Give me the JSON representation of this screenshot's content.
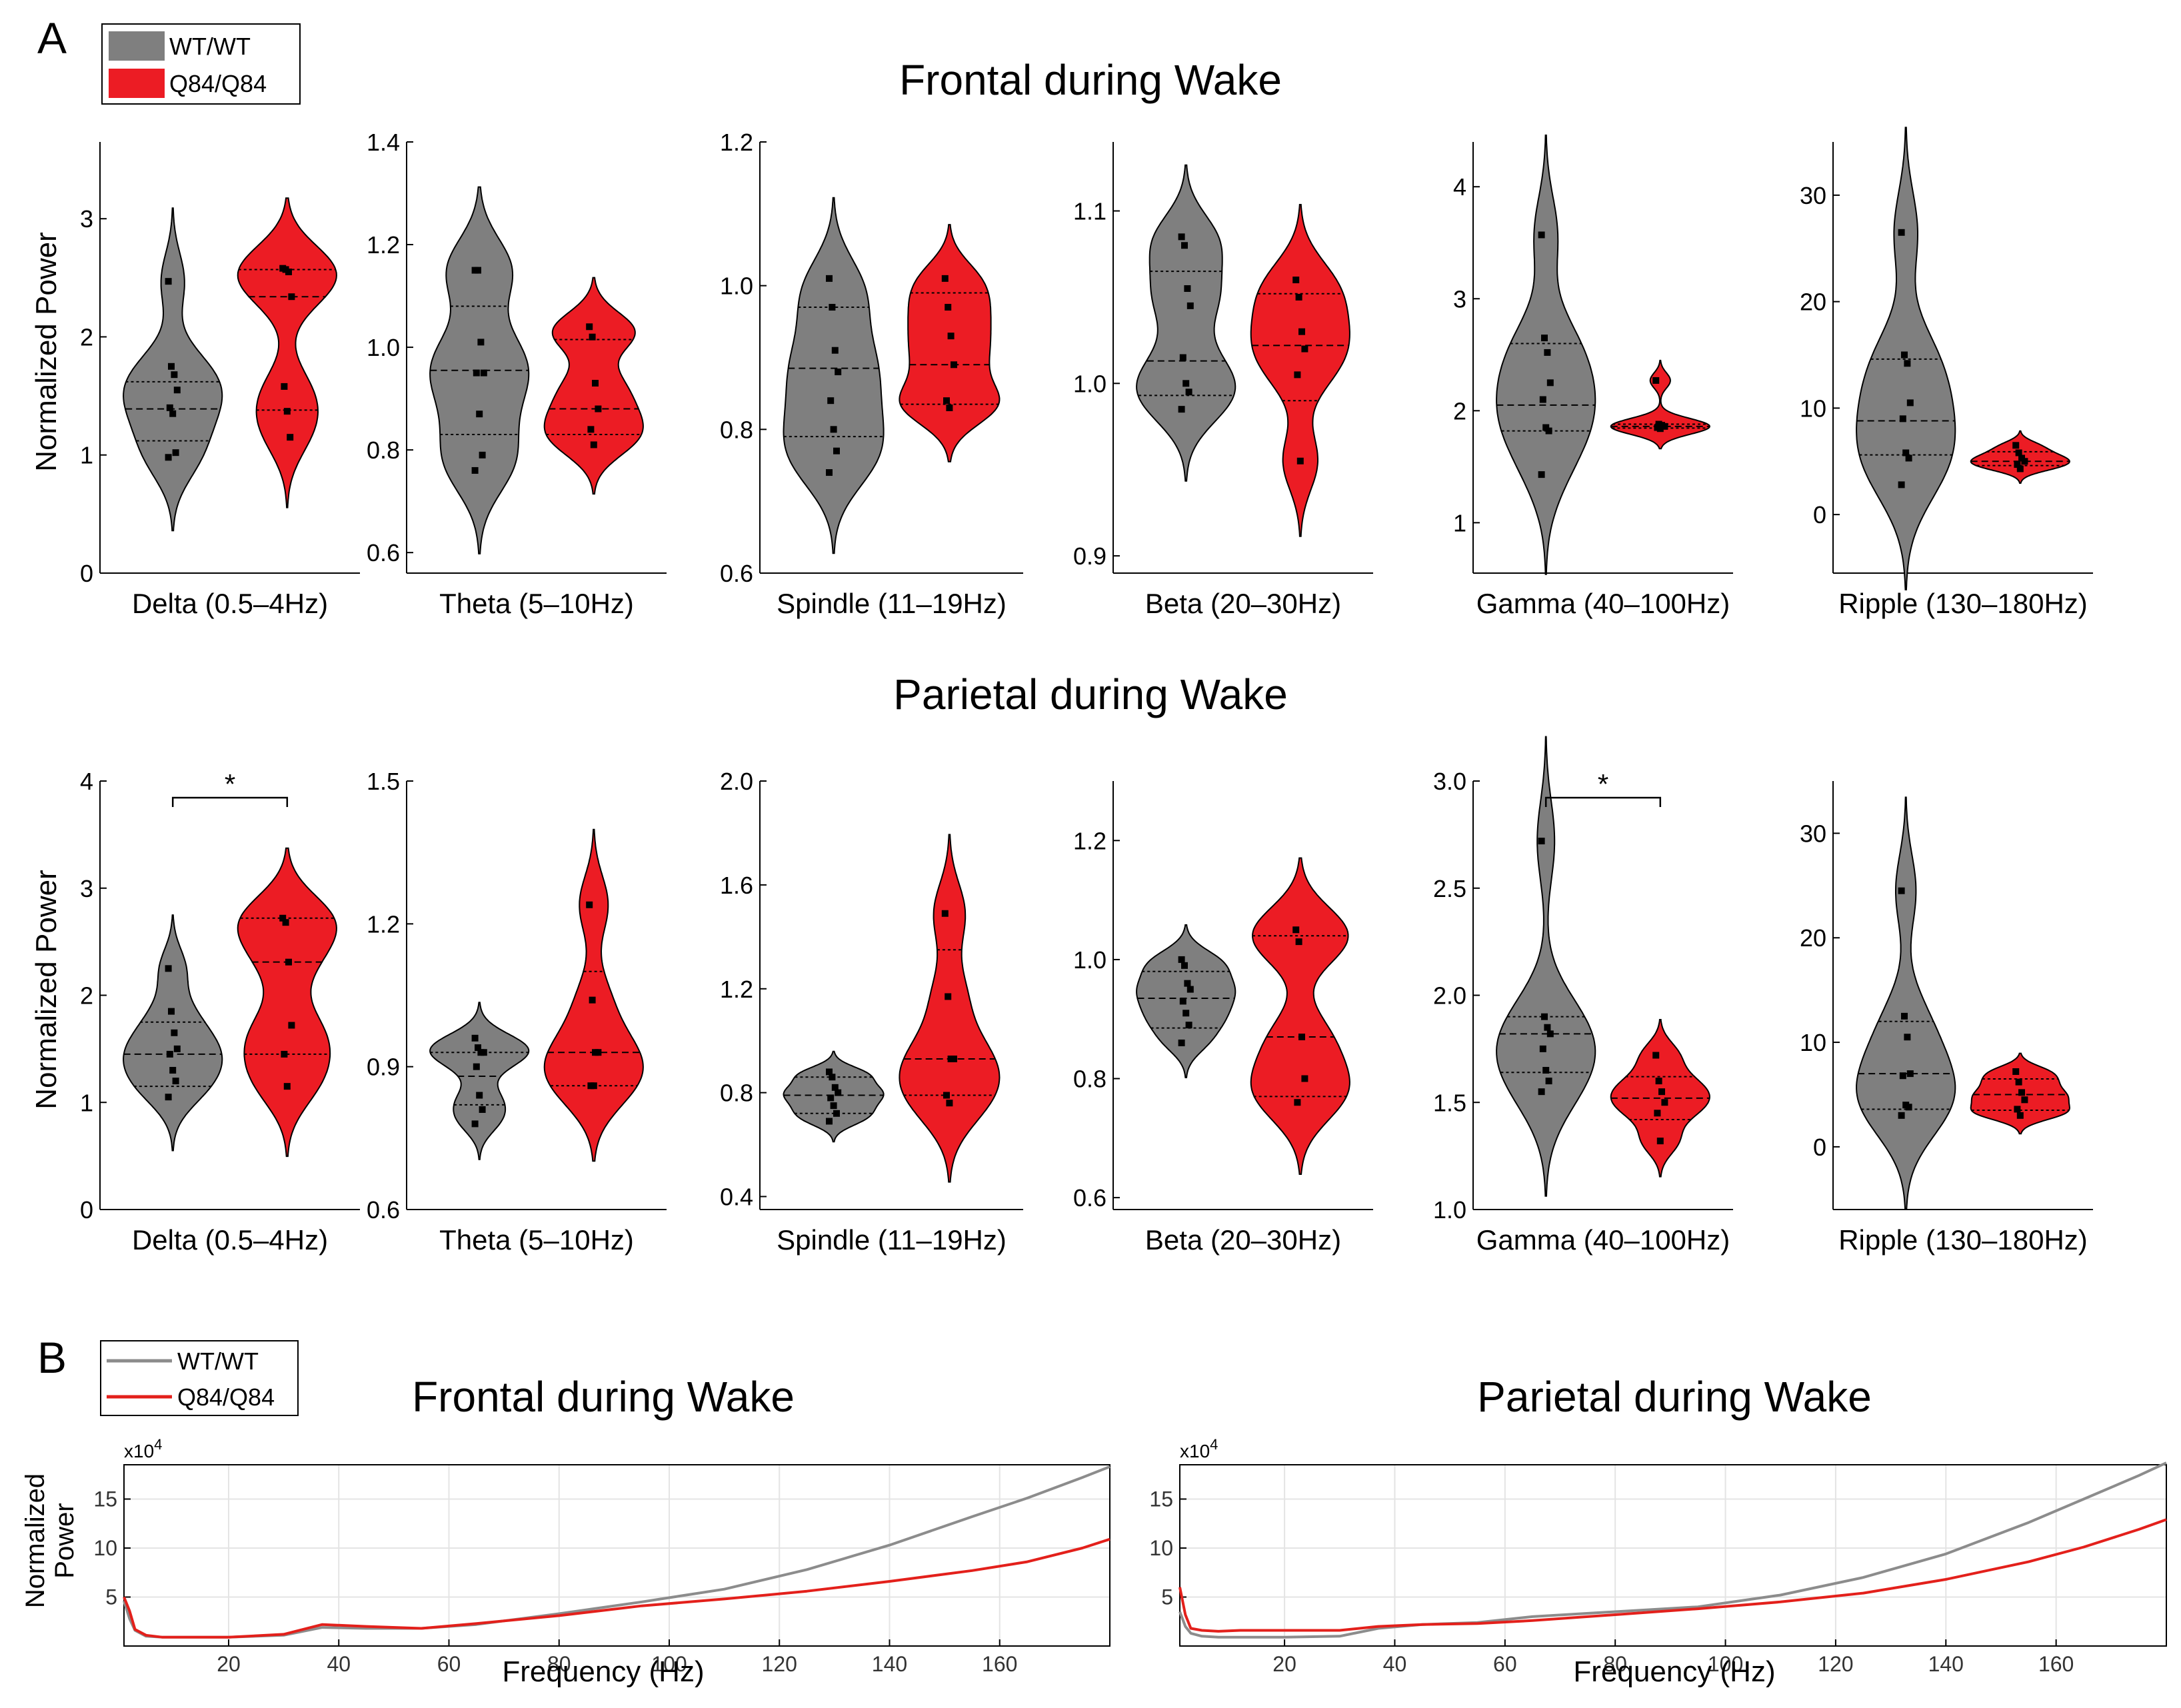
{
  "panel_a": {
    "label": "A",
    "legend": [
      {
        "label": "WT/WT",
        "color": "#7f7f7f"
      },
      {
        "label": "Q84/Q84",
        "color": "#ec1c24"
      }
    ],
    "rows": [
      {
        "title": "Frontal during Wake",
        "ylabel": "Normalized Power",
        "plots": [
          {
            "xlabel": "Delta (0.5–4Hz)",
            "ylim": [
              0,
              3.65
            ],
            "yticks": [
              "0",
              "1",
              "2",
              "3"
            ],
            "wt": {
              "points": [
                2.47,
                1.75,
                1.68,
                1.55,
                1.4,
                1.35,
                1.02,
                0.98
              ],
              "median": 1.39,
              "q1": 1.12,
              "q3": 1.62
            },
            "q84": {
              "points": [
                2.58,
                2.57,
                2.55,
                2.34,
                1.58,
                1.37,
                1.15
              ],
              "median": 2.34,
              "q1": 1.38,
              "q3": 2.57
            },
            "sig": null
          },
          {
            "xlabel": "Theta (5–10Hz)",
            "ylim": [
              0.56,
              1.4
            ],
            "yticks": [
              "0.6",
              "0.8",
              "1.0",
              "1.2",
              "1.4"
            ],
            "wt": {
              "points": [
                1.15,
                1.15,
                1.01,
                0.95,
                0.95,
                0.87,
                0.79,
                0.76
              ],
              "median": 0.955,
              "q1": 0.83,
              "q3": 1.08
            },
            "q84": {
              "points": [
                1.04,
                1.02,
                0.93,
                0.88,
                0.84,
                0.81
              ],
              "median": 0.88,
              "q1": 0.83,
              "q3": 1.015
            },
            "sig": null
          },
          {
            "xlabel": "Spindle (11–19Hz)",
            "ylim": [
              0.6,
              1.2
            ],
            "yticks": [
              "0.6",
              "0.8",
              "1.0",
              "1.2"
            ],
            "wt": {
              "points": [
                1.01,
                0.97,
                0.91,
                0.88,
                0.84,
                0.8,
                0.77,
                0.74
              ],
              "median": 0.885,
              "q1": 0.79,
              "q3": 0.97
            },
            "q84": {
              "points": [
                1.01,
                0.97,
                0.93,
                0.89,
                0.84,
                0.83
              ],
              "median": 0.89,
              "q1": 0.835,
              "q3": 0.99
            },
            "sig": null
          },
          {
            "xlabel": "Beta (20–30Hz)",
            "ylim": [
              0.89,
              1.14
            ],
            "yticks": [
              "0.9",
              "1.0",
              "1.1"
            ],
            "wt": {
              "points": [
                1.085,
                1.08,
                1.055,
                1.045,
                1.015,
                1.0,
                0.995,
                0.985
              ],
              "median": 1.013,
              "q1": 0.993,
              "q3": 1.065
            },
            "q84": {
              "points": [
                1.06,
                1.05,
                1.03,
                1.02,
                1.005,
                0.955
              ],
              "median": 1.022,
              "q1": 0.99,
              "q3": 1.052
            },
            "sig": null
          },
          {
            "xlabel": "Gamma (40–100Hz)",
            "ylim": [
              0.55,
              4.4
            ],
            "yticks": [
              "1",
              "2",
              "3",
              "4"
            ],
            "wt": {
              "points": [
                3.57,
                2.65,
                2.52,
                2.25,
                2.1,
                1.85,
                1.82,
                1.43
              ],
              "median": 2.05,
              "q1": 1.82,
              "q3": 2.6
            },
            "q84": {
              "points": [
                2.27,
                1.88,
                1.87,
                1.86,
                1.85,
                1.84
              ],
              "median": 1.86,
              "q1": 1.845,
              "q3": 1.88
            },
            "sig": null
          },
          {
            "xlabel": "Ripple (130–180Hz)",
            "ylim": [
              -5.5,
              35
            ],
            "yticks": [
              "0",
              "10",
              "20",
              "30"
            ],
            "wt": {
              "points": [
                26.5,
                15,
                14.2,
                10.5,
                9,
                5.8,
                5.3,
                2.8
              ],
              "median": 8.8,
              "q1": 5.6,
              "q3": 14.6
            },
            "q84": {
              "points": [
                6.5,
                5.8,
                5.3,
                5.0,
                4.7,
                4.3
              ],
              "median": 5.0,
              "q1": 4.6,
              "q3": 5.9
            },
            "sig": null
          }
        ]
      },
      {
        "title": "Parietal during Wake",
        "ylabel": "Normalized Power",
        "plots": [
          {
            "xlabel": "Delta (0.5–4Hz)",
            "ylim": [
              0,
              4
            ],
            "yticks": [
              "0",
              "1",
              "2",
              "3",
              "4"
            ],
            "wt": {
              "points": [
                2.25,
                1.85,
                1.65,
                1.5,
                1.45,
                1.3,
                1.2,
                1.05
              ],
              "median": 1.45,
              "q1": 1.15,
              "q3": 1.75
            },
            "q84": {
              "points": [
                2.72,
                2.68,
                2.31,
                1.72,
                1.45,
                1.15
              ],
              "median": 2.31,
              "q1": 1.45,
              "q3": 2.72
            },
            "sig": "*"
          },
          {
            "xlabel": "Theta (5–10Hz)",
            "ylim": [
              0.6,
              1.5
            ],
            "yticks": [
              "0.6",
              "0.9",
              "1.2",
              "1.5"
            ],
            "wt": {
              "points": [
                0.96,
                0.94,
                0.93,
                0.93,
                0.9,
                0.84,
                0.81,
                0.78
              ],
              "median": 0.88,
              "q1": 0.82,
              "q3": 0.93
            },
            "q84": {
              "points": [
                1.24,
                1.04,
                0.93,
                0.93,
                0.86,
                0.86
              ],
              "median": 0.93,
              "q1": 0.86,
              "q3": 1.1
            },
            "sig": null
          },
          {
            "xlabel": "Spindle (11–19Hz)",
            "ylim": [
              0.35,
              2.0
            ],
            "yticks": [
              "0.4",
              "0.8",
              "1.2",
              "1.6",
              "2.0"
            ],
            "wt": {
              "points": [
                0.88,
                0.86,
                0.82,
                0.8,
                0.78,
                0.75,
                0.72,
                0.69
              ],
              "median": 0.79,
              "q1": 0.72,
              "q3": 0.86
            },
            "q84": {
              "points": [
                1.49,
                1.17,
                0.93,
                0.93,
                0.79,
                0.76
              ],
              "median": 0.93,
              "q1": 0.79,
              "q3": 1.35
            },
            "sig": null
          },
          {
            "xlabel": "Beta (20–30Hz)",
            "ylim": [
              0.58,
              1.3
            ],
            "yticks": [
              "0.6",
              "0.8",
              "1.0",
              "1.2"
            ],
            "wt": {
              "points": [
                1.0,
                0.99,
                0.96,
                0.95,
                0.93,
                0.91,
                0.89,
                0.86
              ],
              "median": 0.935,
              "q1": 0.885,
              "q3": 0.98
            },
            "q84": {
              "points": [
                1.05,
                1.03,
                0.87,
                0.8,
                0.76
              ],
              "median": 0.87,
              "q1": 0.77,
              "q3": 1.04
            },
            "sig": null
          },
          {
            "xlabel": "Gamma (40–100Hz)",
            "ylim": [
              1.0,
              3.0
            ],
            "yticks": [
              "1.0",
              "1.5",
              "2.0",
              "2.5",
              "3.0"
            ],
            "wt": {
              "points": [
                2.72,
                1.9,
                1.85,
                1.82,
                1.75,
                1.65,
                1.6,
                1.55
              ],
              "median": 1.82,
              "q1": 1.64,
              "q3": 1.9
            },
            "q84": {
              "points": [
                1.72,
                1.6,
                1.55,
                1.5,
                1.45,
                1.32
              ],
              "median": 1.52,
              "q1": 1.42,
              "q3": 1.62
            },
            "sig": "*"
          },
          {
            "xlabel": "Ripple (130–180Hz)",
            "ylim": [
              -6,
              35
            ],
            "yticks": [
              "0",
              "10",
              "20",
              "30"
            ],
            "wt": {
              "points": [
                24.5,
                12.5,
                10.5,
                7,
                6.8,
                4,
                3.8,
                3
              ],
              "median": 7.0,
              "q1": 3.6,
              "q3": 12
            },
            "q84": {
              "points": [
                7.2,
                6.2,
                5.2,
                4.5,
                3.6,
                3.0
              ],
              "median": 5.0,
              "q1": 3.5,
              "q3": 6.5
            },
            "sig": null
          }
        ]
      }
    ]
  },
  "panel_b": {
    "label": "B",
    "legend": [
      {
        "label": "WT/WT",
        "color": "#8c8c8c"
      },
      {
        "label": "Q84/Q84",
        "color": "#e3201b"
      }
    ],
    "ylabel_line1": "Normalized",
    "ylabel_line2": "Power",
    "charts": [
      {
        "title": "Frontal during Wake",
        "exponent": "x10",
        "exponent_power": "4",
        "xlabel": "Frequency (Hz)",
        "xlim": [
          1,
          180
        ],
        "ylim": [
          0,
          18.5
        ],
        "xticks": [
          "20",
          "40",
          "60",
          "80",
          "100",
          "120",
          "140",
          "160"
        ],
        "yticks": [
          "5",
          "10",
          "15"
        ]
      },
      {
        "title": "Parietal during Wake",
        "exponent": "x10",
        "exponent_power": "4",
        "xlabel": "Frequency (Hz)",
        "xlim": [
          1,
          180
        ],
        "ylim": [
          0,
          18.5
        ],
        "xticks": [
          "20",
          "40",
          "60",
          "80",
          "100",
          "120",
          "140",
          "160"
        ],
        "yticks": [
          "5",
          "10",
          "15"
        ]
      }
    ]
  },
  "chart_data": [
    {
      "type": "line",
      "title": "Frontal during Wake",
      "xlabel": "Frequency (Hz)",
      "ylabel": "Normalized Power (x10^4)",
      "x": [
        1,
        2,
        3,
        5,
        8,
        12,
        20,
        30,
        37,
        45,
        55,
        65,
        80,
        95,
        110,
        125,
        140,
        155,
        165,
        175,
        180
      ],
      "series": [
        {
          "name": "WT/WT",
          "values": [
            4.6,
            2.8,
            1.6,
            1.0,
            0.9,
            0.9,
            0.9,
            1.1,
            1.9,
            1.8,
            1.8,
            2.2,
            3.3,
            4.5,
            5.8,
            7.8,
            10.3,
            13.2,
            15.1,
            17.2,
            18.3
          ]
        },
        {
          "name": "Q84/Q84",
          "values": [
            5.0,
            3.6,
            1.7,
            1.1,
            0.9,
            0.9,
            0.9,
            1.2,
            2.2,
            2.0,
            1.8,
            2.3,
            3.1,
            4.1,
            4.8,
            5.6,
            6.6,
            7.7,
            8.6,
            10.0,
            10.9
          ]
        }
      ]
    },
    {
      "type": "line",
      "title": "Parietal during Wake",
      "xlabel": "Frequency (Hz)",
      "ylabel": "Normalized Power (x10^4)",
      "x": [
        1,
        2,
        3,
        5,
        8,
        12,
        20,
        30,
        37,
        45,
        55,
        65,
        80,
        95,
        110,
        125,
        140,
        155,
        165,
        175,
        180
      ],
      "series": [
        {
          "name": "WT/WT",
          "values": [
            3.5,
            2.0,
            1.3,
            1.0,
            0.9,
            0.9,
            0.9,
            1.0,
            1.8,
            2.2,
            2.4,
            3.0,
            3.5,
            4.0,
            5.2,
            7.0,
            9.4,
            12.6,
            15.0,
            17.4,
            18.7
          ]
        },
        {
          "name": "Q84/Q84",
          "values": [
            6.0,
            3.2,
            1.8,
            1.6,
            1.5,
            1.6,
            1.6,
            1.6,
            2.0,
            2.2,
            2.3,
            2.6,
            3.2,
            3.8,
            4.5,
            5.4,
            6.8,
            8.6,
            10.1,
            11.9,
            12.9
          ]
        }
      ]
    },
    {
      "type": "violin",
      "title": "Frontal during Wake",
      "ylabel": "Normalized Power",
      "categories": [
        "Delta (0.5–4Hz)",
        "Theta (5–10Hz)",
        "Spindle (11–19Hz)",
        "Beta (20–30Hz)",
        "Gamma (40–100Hz)",
        "Ripple (130–180Hz)"
      ],
      "series": [
        {
          "name": "WT/WT",
          "medians": [
            1.39,
            0.955,
            0.885,
            1.013,
            2.05,
            8.8
          ]
        },
        {
          "name": "Q84/Q84",
          "medians": [
            2.34,
            0.88,
            0.89,
            1.022,
            1.86,
            5.0
          ]
        }
      ]
    },
    {
      "type": "violin",
      "title": "Parietal during Wake",
      "ylabel": "Normalized Power",
      "categories": [
        "Delta (0.5–4Hz)",
        "Theta (5–10Hz)",
        "Spindle (11–19Hz)",
        "Beta (20–30Hz)",
        "Gamma (40–100Hz)",
        "Ripple (130–180Hz)"
      ],
      "series": [
        {
          "name": "WT/WT",
          "medians": [
            1.45,
            0.88,
            0.79,
            0.935,
            1.82,
            7.0
          ]
        },
        {
          "name": "Q84/Q84",
          "medians": [
            2.31,
            0.93,
            0.93,
            0.87,
            1.52,
            5.0
          ]
        }
      ]
    }
  ]
}
